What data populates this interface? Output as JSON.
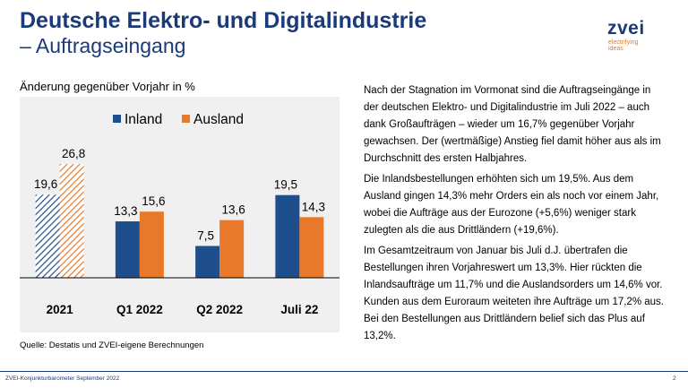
{
  "header": {
    "title_line1": "Deutsche Elektro- und Digitalindustrie",
    "title_line2": "– Auftragseingang"
  },
  "logo": {
    "word": "zvei",
    "tagline_line1": "electrifying",
    "tagline_line2": "ideas"
  },
  "chart_subtitle": "Änderung gegenüber Vorjahr in %",
  "chart_data": {
    "type": "bar",
    "categories": [
      "2021",
      "Q1 2022",
      "Q2 2022",
      "Juli 22"
    ],
    "series": [
      {
        "name": "Inland",
        "values": [
          19.6,
          13.3,
          7.5,
          19.5
        ],
        "color": "#1f4e8c"
      },
      {
        "name": "Ausland",
        "values": [
          26.8,
          15.6,
          13.6,
          14.3
        ],
        "color": "#e8792a"
      }
    ],
    "value_labels": [
      [
        "19,6",
        "13,3",
        "7,5",
        "19,5"
      ],
      [
        "26,8",
        "15,6",
        "13,6",
        "14,3"
      ]
    ],
    "hatched_categories": [
      "2021"
    ],
    "ylim": [
      0,
      30
    ],
    "grid": false,
    "legend_position": "top",
    "xlabel": "",
    "ylabel": ""
  },
  "source_text": "Quelle: Destatis und ZVEI-eigene Berechnungen",
  "body": {
    "paragraphs": [
      "Nach der Stagnation im Vormonat sind die Auftrags­eingänge in der deutschen Elektro- und Digitalindustrie im Juli 2022 – auch dank Großaufträgen – wieder um 16,7% gegenüber Vorjahr gewachsen. Der (wertmäßige) Anstieg fiel damit höher aus als im Durchschnitt des ersten Halbjahres.",
      "Die Inlandsbestellungen erhöhten sich um 19,5%. Aus dem Ausland gingen 14,3% mehr Orders ein als noch vor einem Jahr, wobei die Aufträge aus der Eurozone (+5,6%) weniger stark zulegten als die aus Drittländern (+19,6%).",
      "Im Gesamtzeitraum von Januar bis Juli d.J. übertrafen die Bestellungen ihren Vorjahreswert um 13,3%. Hier rückten die Inlandsaufträge um 11,7% und die Auslandsorders um 14,6% vor. Kunden aus dem Euroraum weiteten ihre Aufträge um 17,2% aus. Bei den Bestellungen aus Drittländern belief sich das Plus auf 13,2%."
    ]
  },
  "footer": {
    "left_text": "ZVEI-Konjunkturbarometer September 2022",
    "page_number": "2"
  },
  "colors": {
    "title": "#1a3a78",
    "inland": "#1f4e8c",
    "ausland": "#e8792a",
    "panel_bg": "#f0f0f0"
  }
}
